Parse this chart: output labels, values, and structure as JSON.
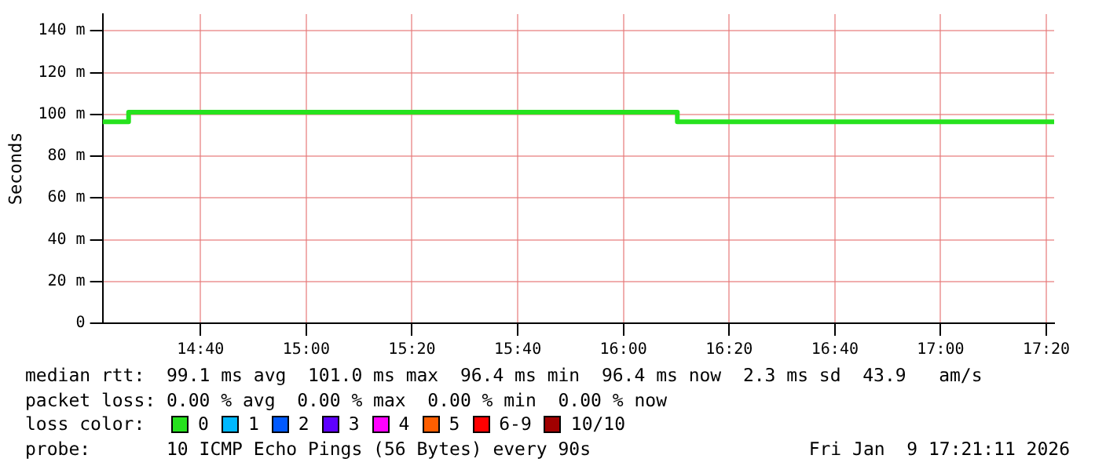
{
  "chart_data": {
    "type": "step",
    "ylabel": "Seconds",
    "x": [
      14.358,
      14.44,
      16.17,
      17.358
    ],
    "xlim": [
      14.358,
      17.358
    ],
    "xticks": [
      {
        "value": 14.6667,
        "label": "14:40"
      },
      {
        "value": 15,
        "label": "15:00"
      },
      {
        "value": 15.3333,
        "label": "15:20"
      },
      {
        "value": 15.6667,
        "label": "15:40"
      },
      {
        "value": 16,
        "label": "16:00"
      },
      {
        "value": 16.3333,
        "label": "16:20"
      },
      {
        "value": 16.6667,
        "label": "16:40"
      },
      {
        "value": 17,
        "label": "17:00"
      },
      {
        "value": 17.3333,
        "label": "17:20"
      }
    ],
    "ylim": [
      0,
      148
    ],
    "yticks": [
      0,
      {
        "value": 20,
        "label": "20 m"
      },
      {
        "value": 40,
        "label": "40 m"
      },
      {
        "value": 60,
        "label": "60 m"
      },
      {
        "value": 80,
        "label": "80 m"
      },
      {
        "value": 100,
        "label": "100 m"
      },
      {
        "value": 120,
        "label": "120 m"
      },
      {
        "value": 140,
        "label": "140 m"
      }
    ],
    "grid": true,
    "legend": "bottom",
    "legend_title": "loss color:",
    "series": [
      {
        "name": "0",
        "color": "#26e21e",
        "values": [
          96.4,
          101,
          96.4,
          96.4
        ]
      },
      {
        "name": "1",
        "color": "#00b8ff",
        "values": [
          null,
          null,
          null,
          null
        ]
      },
      {
        "name": "2",
        "color": "#0059ff",
        "values": [
          null,
          null,
          null,
          null
        ]
      },
      {
        "name": "3",
        "color": "#5e00ff",
        "values": [
          null,
          null,
          null,
          null
        ]
      },
      {
        "name": "4",
        "color": "#ff00ff",
        "values": [
          null,
          null,
          null,
          null
        ]
      },
      {
        "name": "5",
        "color": "#ff5e00",
        "values": [
          null,
          null,
          null,
          null
        ]
      },
      {
        "name": "6-9",
        "color": "#ff0000",
        "values": [
          null,
          null,
          null,
          null
        ]
      },
      {
        "name": "10/10",
        "color": "#a10000",
        "values": [
          null,
          null,
          null,
          null
        ]
      }
    ],
    "annotations": [
      "median rtt:  99.1 ms avg  101.0 ms max  96.4 ms min  96.4 ms now  2.3 ms sd  43.9   am/s",
      "packet loss: 0.00 % avg  0.00 % max  0.00 % min  0.00 % now",
      "probe:       10 ICMP Echo Pings (56 Bytes) every 90s",
      "Fri Jan  9 17:21:11 2026"
    ]
  }
}
